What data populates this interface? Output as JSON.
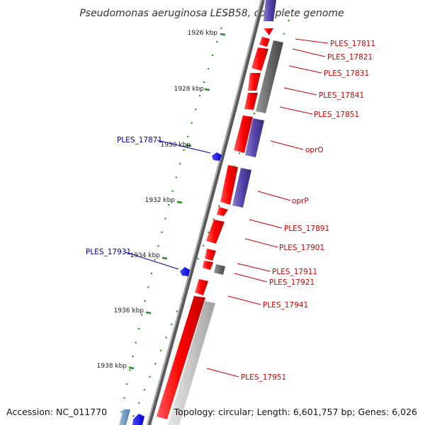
{
  "title": "Pseudomonas aeruginosa LESB58, complete genome",
  "footer": {
    "accession": "Accession: NC_011770",
    "summary": "Topology: circular; Length: 6,601,757 bp; Genes: 6,026"
  },
  "ruler": [
    {
      "label": "1926 kbp"
    },
    {
      "label": "1928 kbp"
    },
    {
      "label": "1930 kbp"
    },
    {
      "label": "1932 kbp"
    },
    {
      "label": "1934 kbp"
    },
    {
      "label": "1936 kbp"
    },
    {
      "label": "1938 kbp"
    }
  ],
  "forward_labels": [
    "PLES_17811",
    "PLES_17821",
    "PLES_17831",
    "PLES_17841",
    "PLES_17851",
    "oprO",
    "oprP",
    "PLES_17891",
    "PLES_17901",
    "PLES_17911",
    "PLES_17921",
    "PLES_17941",
    "PLES_17951"
  ],
  "reverse_labels": [
    "PLES_17871",
    "PLES_17931"
  ],
  "colors": {
    "forward_gene": "#ff0000",
    "reverse_gene": "#0000ff",
    "cds_dark": "#666666",
    "cds_purple": "#5544aa",
    "cds_light": "#c8c8c8",
    "backbone": "#888888",
    "ruler_dots": "#228b22",
    "label_forward": "#cc0000",
    "label_reverse": "#000099"
  }
}
